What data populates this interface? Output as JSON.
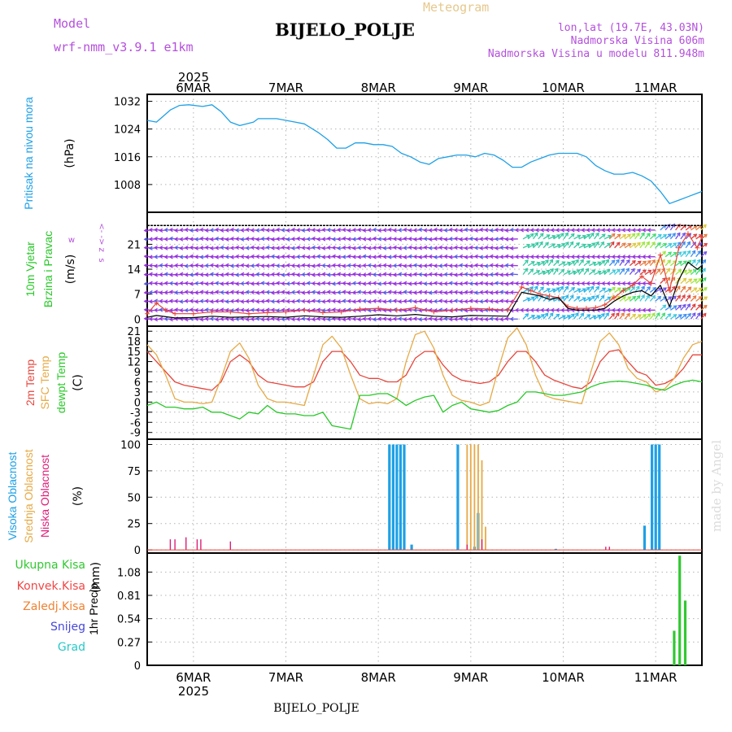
{
  "header": {
    "model_label": "Model",
    "model_name": "wrf-nmm_v3.9.1 e1km",
    "app_title": "Meteogram",
    "station": "BIJELO_POLJE",
    "coords": "lon,lat (19.7E, 43.03N)",
    "elevation": "Nadmorska Visina 606m",
    "model_elevation": "Nadmorska Visina u modelu 811.948m",
    "footer_station": "BIJELO_POLJE",
    "watermark": "made by Angel"
  },
  "time_axis": {
    "start_day": 5.5,
    "end_day": 11.5,
    "days": [
      "6MAR",
      "7MAR",
      "8MAR",
      "9MAR",
      "10MAR",
      "11MAR"
    ],
    "day_positions": [
      6,
      7,
      8,
      9,
      10,
      11
    ],
    "year": "2025"
  },
  "colors": {
    "pressure": "#1ea0e6",
    "t2m": "#e6463c",
    "sfc": "#e6aa46",
    "dew": "#28c828",
    "wind_label": "#28c828",
    "wind_dir": "#b450dc",
    "high_cloud": "#1ea0e6",
    "mid_cloud": "#e6aa46",
    "low_cloud": "#dc1e78",
    "total_precip": "#32c832",
    "conv_precip": "#f04646",
    "frozen_precip": "#f08232",
    "snow": "#4646dc",
    "hail": "#28c8c8"
  },
  "chart_data": [
    {
      "type": "line",
      "name": "pressure",
      "ylabel_lines": [
        "Pritisak na nivou mora"
      ],
      "unit": "(hPa)",
      "ylim": [
        1000,
        1034
      ],
      "yticks": [
        1008,
        1016,
        1024,
        1032
      ],
      "x": [
        5.5,
        5.6,
        5.75,
        5.85,
        5.95,
        6.1,
        6.2,
        6.3,
        6.4,
        6.5,
        6.65,
        6.7,
        6.8,
        6.9,
        7.0,
        7.1,
        7.2,
        7.35,
        7.45,
        7.55,
        7.65,
        7.75,
        7.85,
        7.95,
        8.05,
        8.15,
        8.25,
        8.35,
        8.45,
        8.55,
        8.65,
        8.75,
        8.85,
        8.95,
        9.05,
        9.15,
        9.25,
        9.35,
        9.45,
        9.55,
        9.65,
        9.75,
        9.85,
        9.95,
        10.05,
        10.15,
        10.25,
        10.35,
        10.45,
        10.55,
        10.65,
        10.75,
        10.85,
        10.95,
        11.05,
        11.15,
        11.25,
        11.35,
        11.45,
        11.5
      ],
      "y": [
        1026.5,
        1026,
        1029.5,
        1030.8,
        1031,
        1030.5,
        1031,
        1029,
        1026,
        1025,
        1026,
        1027,
        1027,
        1027,
        1026.5,
        1026,
        1025.5,
        1023,
        1021,
        1018.5,
        1018.5,
        1020,
        1020,
        1019.5,
        1019.5,
        1019,
        1017,
        1016,
        1014.5,
        1013.8,
        1015.5,
        1016,
        1016.5,
        1016.5,
        1016,
        1017,
        1016.5,
        1015,
        1013,
        1013,
        1014.5,
        1015.5,
        1016.5,
        1017,
        1017,
        1017,
        1016,
        1013.5,
        1012,
        1011,
        1011,
        1011.5,
        1010.5,
        1009,
        1006,
        1002.5,
        1003.5,
        1004.5,
        1005.5,
        1006
      ]
    },
    {
      "type": "line",
      "name": "wind",
      "ylabel_lines": [
        "10m Vjetar",
        "Brzina i Pravac"
      ],
      "unit": "(m/s)",
      "compass": [
        "w",
        "<- -> z",
        "s"
      ],
      "ylim": [
        -2,
        30
      ],
      "yticks": [
        0,
        7,
        14,
        21
      ],
      "arrow_rows": [
        0,
        2.5,
        5,
        7.5,
        10,
        12.5,
        15,
        17.5,
        20,
        22.5,
        25
      ],
      "wind_speed": {
        "x": [
          5.5,
          5.6,
          5.8,
          6.0,
          6.2,
          6.4,
          6.6,
          6.8,
          7.0,
          7.2,
          7.4,
          7.6,
          7.8,
          8.0,
          8.2,
          8.4,
          8.6,
          8.8,
          9.0,
          9.2,
          9.4,
          9.55,
          9.65,
          9.75,
          9.85,
          9.95,
          10.05,
          10.15,
          10.25,
          10.35,
          10.45,
          10.55,
          10.65,
          10.75,
          10.85,
          10.95,
          11.05,
          11.15,
          11.25,
          11.35,
          11.45,
          11.5
        ],
        "y": [
          0.5,
          1.0,
          0.3,
          0.4,
          0.8,
          0.5,
          0.6,
          0.7,
          0.5,
          0.9,
          0.6,
          0.5,
          0.8,
          1.2,
          0.9,
          1.3,
          0.8,
          0.6,
          1.0,
          0.9,
          0.8,
          7.5,
          7.0,
          6.5,
          5.5,
          6.0,
          3.0,
          2.5,
          2.5,
          2.5,
          3.0,
          5.0,
          6.5,
          7.5,
          8.0,
          6.5,
          9.5,
          3.5,
          11.0,
          16.0,
          14.0,
          15.0
        ]
      },
      "wind_gust": {
        "x": [
          5.5,
          5.6,
          5.7,
          5.8,
          6.0,
          6.2,
          6.4,
          6.6,
          6.8,
          7.0,
          7.2,
          7.4,
          7.6,
          7.8,
          8.0,
          8.2,
          8.4,
          8.6,
          8.8,
          9.0,
          9.2,
          9.4,
          9.55,
          9.65,
          9.75,
          9.85,
          9.95,
          10.05,
          10.15,
          10.25,
          10.35,
          10.45,
          10.55,
          10.65,
          10.75,
          10.85,
          10.95,
          11.05,
          11.15,
          11.25,
          11.35,
          11.45,
          11.5
        ],
        "y": [
          1.5,
          4.5,
          2.5,
          1.5,
          1.5,
          2.0,
          2.0,
          1.5,
          1.8,
          2.0,
          2.5,
          1.8,
          2.0,
          2.8,
          3.0,
          2.5,
          3.2,
          2.0,
          2.5,
          3.0,
          2.8,
          2.5,
          9.0,
          8.0,
          7.0,
          6.5,
          6.0,
          3.5,
          3.0,
          3.0,
          3.2,
          4.0,
          6.0,
          8.0,
          9.5,
          12.0,
          10.0,
          18.0,
          8.0,
          20.0,
          24.0,
          20.0,
          23.0
        ]
      }
    },
    {
      "type": "line",
      "name": "temperature",
      "ylabel_lines": [
        "2m Temp",
        "SFC Temp",
        "dewpt Temp"
      ],
      "unit": "(C)",
      "ylim": [
        -11,
        22.5
      ],
      "yticks": [
        -9,
        -6,
        -3,
        0,
        3,
        6,
        9,
        12,
        15,
        18,
        21
      ],
      "x": [
        5.5,
        5.6,
        5.7,
        5.8,
        5.9,
        6.0,
        6.1,
        6.2,
        6.3,
        6.4,
        6.5,
        6.6,
        6.7,
        6.8,
        6.9,
        7.0,
        7.1,
        7.2,
        7.3,
        7.4,
        7.5,
        7.6,
        7.7,
        7.8,
        7.9,
        8.0,
        8.1,
        8.2,
        8.3,
        8.4,
        8.5,
        8.6,
        8.7,
        8.8,
        8.9,
        9.0,
        9.1,
        9.2,
        9.3,
        9.4,
        9.5,
        9.6,
        9.7,
        9.8,
        9.9,
        10.0,
        10.1,
        10.2,
        10.3,
        10.4,
        10.5,
        10.6,
        10.7,
        10.8,
        10.9,
        11.0,
        11.1,
        11.2,
        11.3,
        11.4,
        11.5
      ],
      "series": [
        {
          "name": "2m Temp",
          "values": [
            15,
            12,
            9,
            6,
            5,
            4.5,
            4,
            3.5,
            6,
            12,
            14,
            12,
            8,
            6,
            5.5,
            5,
            4.5,
            4.5,
            6,
            12,
            15,
            15,
            12,
            8,
            7,
            7,
            6,
            6,
            8,
            13,
            15,
            15,
            11,
            8,
            6.5,
            6,
            5.5,
            6,
            8,
            12,
            15,
            15,
            12,
            8,
            6.5,
            5.5,
            4.5,
            4,
            6,
            12,
            15,
            15.5,
            12,
            9,
            8,
            5,
            5.5,
            7,
            10,
            14,
            14
          ]
        },
        {
          "name": "SFC Temp",
          "values": [
            17,
            14,
            8,
            1,
            0,
            0,
            -0.5,
            0,
            7,
            15,
            17.5,
            13,
            5,
            1,
            0,
            0,
            -0.5,
            -1,
            8,
            17,
            19.5,
            16,
            8,
            1,
            -0.5,
            0,
            -0.5,
            1,
            12,
            20,
            21,
            16,
            8,
            2,
            0.5,
            0,
            -1,
            0,
            10,
            19,
            22,
            17,
            8,
            2,
            1,
            0.5,
            0,
            -0.5,
            9,
            18,
            20.5,
            17,
            10,
            7,
            6,
            3,
            4,
            7,
            13,
            17,
            18
          ]
        },
        {
          "name": "dewpt Temp",
          "values": [
            -1,
            0,
            -1.5,
            -1.5,
            -2,
            -2,
            -1.5,
            -3,
            -3,
            -4,
            -5,
            -3,
            -3.5,
            -1,
            -3,
            -3.5,
            -3.5,
            -4,
            -4,
            -3,
            -7,
            -7.5,
            -8,
            2,
            2,
            2.5,
            2.5,
            1,
            -1,
            0.5,
            1.5,
            2,
            -3,
            -1,
            0,
            -2,
            -2.5,
            -3,
            -2.5,
            -1,
            0,
            3,
            3,
            2.5,
            2,
            2,
            2.5,
            3,
            4.5,
            5.5,
            6,
            6.2,
            6,
            5.5,
            5,
            4,
            3.5,
            5,
            6,
            6.5,
            6
          ]
        }
      ]
    },
    {
      "type": "bar",
      "name": "clouds",
      "ylabel_lines": [
        "Visoka Oblacnost",
        "Srednja Oblacnost",
        "Niska Oblacnost"
      ],
      "unit": "(%)",
      "ylim": [
        -3,
        105
      ],
      "yticks": [
        0,
        25,
        50,
        75,
        100
      ],
      "series": [
        {
          "name": "Visoka Oblacnost",
          "bars": [
            [
              8.12,
              100
            ],
            [
              8.16,
              100
            ],
            [
              8.2,
              100
            ],
            [
              8.24,
              100
            ],
            [
              8.28,
              100
            ],
            [
              8.36,
              5
            ],
            [
              8.86,
              100
            ],
            [
              9.04,
              3
            ],
            [
              9.08,
              35
            ],
            [
              9.92,
              1
            ],
            [
              10.88,
              23
            ],
            [
              10.96,
              100
            ],
            [
              11.0,
              100
            ],
            [
              11.04,
              100
            ]
          ]
        },
        {
          "name": "Srednja Oblacnost",
          "bars": [
            [
              8.96,
              100
            ],
            [
              9.0,
              100
            ],
            [
              9.04,
              100
            ],
            [
              9.08,
              100
            ],
            [
              9.12,
              85
            ],
            [
              9.16,
              22
            ]
          ]
        },
        {
          "name": "Niska Oblacnost",
          "bars": [
            [
              5.75,
              10
            ],
            [
              5.8,
              10
            ],
            [
              5.92,
              12
            ],
            [
              6.04,
              10
            ],
            [
              6.08,
              10
            ],
            [
              6.4,
              8
            ],
            [
              8.96,
              5
            ],
            [
              9.12,
              10
            ],
            [
              10.46,
              3
            ],
            [
              10.5,
              3
            ]
          ]
        }
      ]
    },
    {
      "type": "bar",
      "name": "precipitation",
      "ylabel_lines": [
        "1hr Precip"
      ],
      "unit": "(mm)",
      "legend": [
        "Ukupna Kisa",
        "Konvek.Kisa",
        "Zaledj.Kisa",
        "Snijeg",
        "Grad"
      ],
      "ylim": [
        0,
        1.3
      ],
      "yticks": [
        0,
        0.27,
        0.54,
        0.81,
        1.08
      ],
      "bars": [
        [
          11.2,
          0.4
        ],
        [
          11.26,
          1.27
        ],
        [
          11.32,
          0.75
        ]
      ]
    }
  ]
}
